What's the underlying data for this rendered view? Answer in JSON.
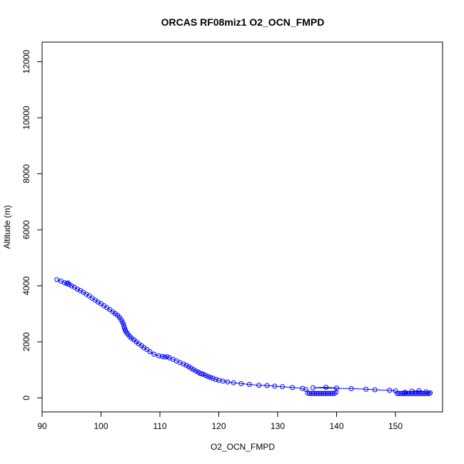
{
  "chart_data": {
    "type": "scatter",
    "title": "ORCAS RF08miz1 O2_OCN_FMPD",
    "xlabel": "O2_OCN_FMPD",
    "ylabel": "Altitude (m)",
    "xlim": [
      90,
      158
    ],
    "ylim": [
      -500,
      12700
    ],
    "x_ticks": [
      90,
      100,
      110,
      120,
      130,
      140,
      150
    ],
    "y_ticks": [
      0,
      2000,
      4000,
      6000,
      8000,
      10000,
      12000
    ],
    "marker": "open-circle",
    "connected_by_line": true,
    "grid": false,
    "color": "#0000ff",
    "series": [
      {
        "x": [
          92.5,
          93.2,
          93.8,
          94.2,
          94.4,
          94.6,
          95.0,
          95.5,
          96.0,
          96.5,
          97.0,
          97.5,
          98.0,
          98.5,
          99.0,
          99.5,
          100.0,
          100.5,
          101.0,
          101.5,
          102.0,
          102.4,
          102.8,
          103.1,
          103.4,
          103.6,
          103.8,
          103.9,
          104.0,
          104.1,
          104.2,
          104.4,
          104.6,
          104.9,
          105.2,
          105.6,
          106.0,
          106.4,
          106.9,
          107.3,
          107.8,
          108.3,
          109.0,
          109.8,
          110.4,
          110.8,
          111.2,
          111.6,
          112.2,
          112.8,
          113.4,
          114.0,
          114.5,
          114.9,
          115.3,
          115.7,
          116.1,
          116.5,
          116.8,
          117.1,
          117.4,
          117.8,
          118.2,
          118.6,
          119.0,
          119.5,
          120.0,
          120.7,
          121.5,
          122.5,
          123.8,
          125.2,
          126.8,
          128.2,
          129.5,
          130.8,
          132.5,
          134.2,
          134.8,
          135.1,
          135.4,
          135.7,
          136.0,
          136.3,
          136.6,
          136.9,
          137.2,
          137.5,
          137.8,
          138.1,
          138.4,
          138.7,
          139.0,
          139.3,
          139.6,
          139.9,
          140.0,
          138.2,
          136.0,
          142.5,
          145.0,
          146.5,
          149.0,
          150.0,
          150.3,
          150.6,
          150.9,
          151.2,
          151.5,
          151.8,
          152.1,
          152.4,
          152.7,
          153.0,
          153.3,
          153.6,
          153.9,
          154.2,
          154.5,
          154.8,
          155.1,
          155.4,
          155.7,
          155.9,
          155.2,
          154.0,
          152.8,
          151.6
        ],
        "y": [
          4220,
          4170,
          4110,
          4080,
          4100,
          4050,
          4000,
          3950,
          3880,
          3830,
          3770,
          3700,
          3640,
          3560,
          3490,
          3420,
          3360,
          3290,
          3220,
          3150,
          3070,
          3010,
          2950,
          2880,
          2800,
          2720,
          2640,
          2560,
          2490,
          2430,
          2380,
          2320,
          2260,
          2190,
          2130,
          2070,
          2000,
          1930,
          1860,
          1790,
          1730,
          1650,
          1560,
          1500,
          1480,
          1460,
          1470,
          1430,
          1380,
          1320,
          1260,
          1210,
          1160,
          1110,
          1060,
          1010,
          960,
          920,
          880,
          860,
          840,
          800,
          760,
          730,
          700,
          660,
          630,
          600,
          570,
          540,
          510,
          480,
          450,
          440,
          420,
          400,
          370,
          340,
          300,
          170,
          160,
          160,
          160,
          160,
          160,
          160,
          160,
          160,
          160,
          160,
          160,
          160,
          160,
          160,
          160,
          200,
          350,
          380,
          360,
          330,
          310,
          290,
          270,
          250,
          160,
          160,
          160,
          160,
          160,
          160,
          160,
          160,
          160,
          160,
          160,
          160,
          160,
          160,
          160,
          160,
          160,
          160,
          160,
          180,
          220,
          260,
          240,
          200
        ]
      }
    ]
  }
}
